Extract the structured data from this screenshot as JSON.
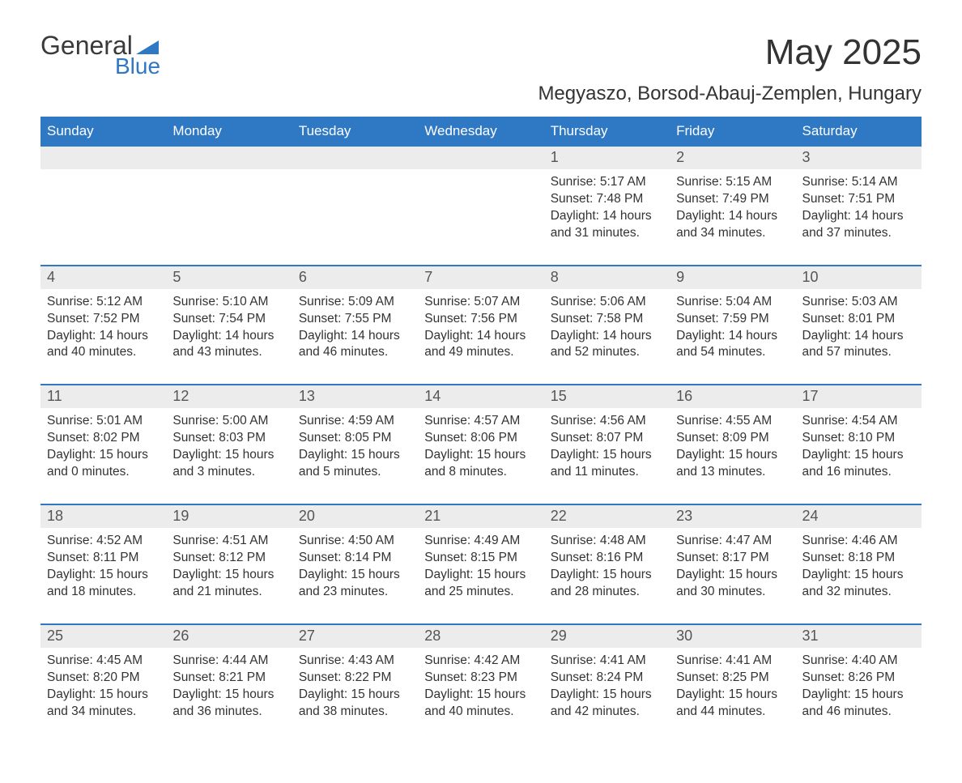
{
  "logo": {
    "word1": "General",
    "word2": "Blue"
  },
  "title": "May 2025",
  "subtitle": "Megyaszo, Borsod-Abauj-Zemplen, Hungary",
  "colors": {
    "header_bg": "#2f78c4",
    "header_text": "#ffffff",
    "daynum_bg": "#ececec",
    "daynum_text": "#555555",
    "body_text": "#333333",
    "page_bg": "#ffffff",
    "logo_gray": "#3a3a3a",
    "logo_blue": "#2f78c4"
  },
  "typography": {
    "title_fontsize": 44,
    "subtitle_fontsize": 24,
    "dayheader_fontsize": 17,
    "daynum_fontsize": 18,
    "body_fontsize": 15.5
  },
  "layout": {
    "columns": 7,
    "weeks": 5,
    "first_day_column": 4
  },
  "day_names": [
    "Sunday",
    "Monday",
    "Tuesday",
    "Wednesday",
    "Thursday",
    "Friday",
    "Saturday"
  ],
  "days": [
    {
      "n": 1,
      "sunrise": "5:17 AM",
      "sunset": "7:48 PM",
      "daylight": "14 hours and 31 minutes."
    },
    {
      "n": 2,
      "sunrise": "5:15 AM",
      "sunset": "7:49 PM",
      "daylight": "14 hours and 34 minutes."
    },
    {
      "n": 3,
      "sunrise": "5:14 AM",
      "sunset": "7:51 PM",
      "daylight": "14 hours and 37 minutes."
    },
    {
      "n": 4,
      "sunrise": "5:12 AM",
      "sunset": "7:52 PM",
      "daylight": "14 hours and 40 minutes."
    },
    {
      "n": 5,
      "sunrise": "5:10 AM",
      "sunset": "7:54 PM",
      "daylight": "14 hours and 43 minutes."
    },
    {
      "n": 6,
      "sunrise": "5:09 AM",
      "sunset": "7:55 PM",
      "daylight": "14 hours and 46 minutes."
    },
    {
      "n": 7,
      "sunrise": "5:07 AM",
      "sunset": "7:56 PM",
      "daylight": "14 hours and 49 minutes."
    },
    {
      "n": 8,
      "sunrise": "5:06 AM",
      "sunset": "7:58 PM",
      "daylight": "14 hours and 52 minutes."
    },
    {
      "n": 9,
      "sunrise": "5:04 AM",
      "sunset": "7:59 PM",
      "daylight": "14 hours and 54 minutes."
    },
    {
      "n": 10,
      "sunrise": "5:03 AM",
      "sunset": "8:01 PM",
      "daylight": "14 hours and 57 minutes."
    },
    {
      "n": 11,
      "sunrise": "5:01 AM",
      "sunset": "8:02 PM",
      "daylight": "15 hours and 0 minutes."
    },
    {
      "n": 12,
      "sunrise": "5:00 AM",
      "sunset": "8:03 PM",
      "daylight": "15 hours and 3 minutes."
    },
    {
      "n": 13,
      "sunrise": "4:59 AM",
      "sunset": "8:05 PM",
      "daylight": "15 hours and 5 minutes."
    },
    {
      "n": 14,
      "sunrise": "4:57 AM",
      "sunset": "8:06 PM",
      "daylight": "15 hours and 8 minutes."
    },
    {
      "n": 15,
      "sunrise": "4:56 AM",
      "sunset": "8:07 PM",
      "daylight": "15 hours and 11 minutes."
    },
    {
      "n": 16,
      "sunrise": "4:55 AM",
      "sunset": "8:09 PM",
      "daylight": "15 hours and 13 minutes."
    },
    {
      "n": 17,
      "sunrise": "4:54 AM",
      "sunset": "8:10 PM",
      "daylight": "15 hours and 16 minutes."
    },
    {
      "n": 18,
      "sunrise": "4:52 AM",
      "sunset": "8:11 PM",
      "daylight": "15 hours and 18 minutes."
    },
    {
      "n": 19,
      "sunrise": "4:51 AM",
      "sunset": "8:12 PM",
      "daylight": "15 hours and 21 minutes."
    },
    {
      "n": 20,
      "sunrise": "4:50 AM",
      "sunset": "8:14 PM",
      "daylight": "15 hours and 23 minutes."
    },
    {
      "n": 21,
      "sunrise": "4:49 AM",
      "sunset": "8:15 PM",
      "daylight": "15 hours and 25 minutes."
    },
    {
      "n": 22,
      "sunrise": "4:48 AM",
      "sunset": "8:16 PM",
      "daylight": "15 hours and 28 minutes."
    },
    {
      "n": 23,
      "sunrise": "4:47 AM",
      "sunset": "8:17 PM",
      "daylight": "15 hours and 30 minutes."
    },
    {
      "n": 24,
      "sunrise": "4:46 AM",
      "sunset": "8:18 PM",
      "daylight": "15 hours and 32 minutes."
    },
    {
      "n": 25,
      "sunrise": "4:45 AM",
      "sunset": "8:20 PM",
      "daylight": "15 hours and 34 minutes."
    },
    {
      "n": 26,
      "sunrise": "4:44 AM",
      "sunset": "8:21 PM",
      "daylight": "15 hours and 36 minutes."
    },
    {
      "n": 27,
      "sunrise": "4:43 AM",
      "sunset": "8:22 PM",
      "daylight": "15 hours and 38 minutes."
    },
    {
      "n": 28,
      "sunrise": "4:42 AM",
      "sunset": "8:23 PM",
      "daylight": "15 hours and 40 minutes."
    },
    {
      "n": 29,
      "sunrise": "4:41 AM",
      "sunset": "8:24 PM",
      "daylight": "15 hours and 42 minutes."
    },
    {
      "n": 30,
      "sunrise": "4:41 AM",
      "sunset": "8:25 PM",
      "daylight": "15 hours and 44 minutes."
    },
    {
      "n": 31,
      "sunrise": "4:40 AM",
      "sunset": "8:26 PM",
      "daylight": "15 hours and 46 minutes."
    }
  ],
  "labels": {
    "sunrise": "Sunrise:",
    "sunset": "Sunset:",
    "daylight": "Daylight:"
  }
}
